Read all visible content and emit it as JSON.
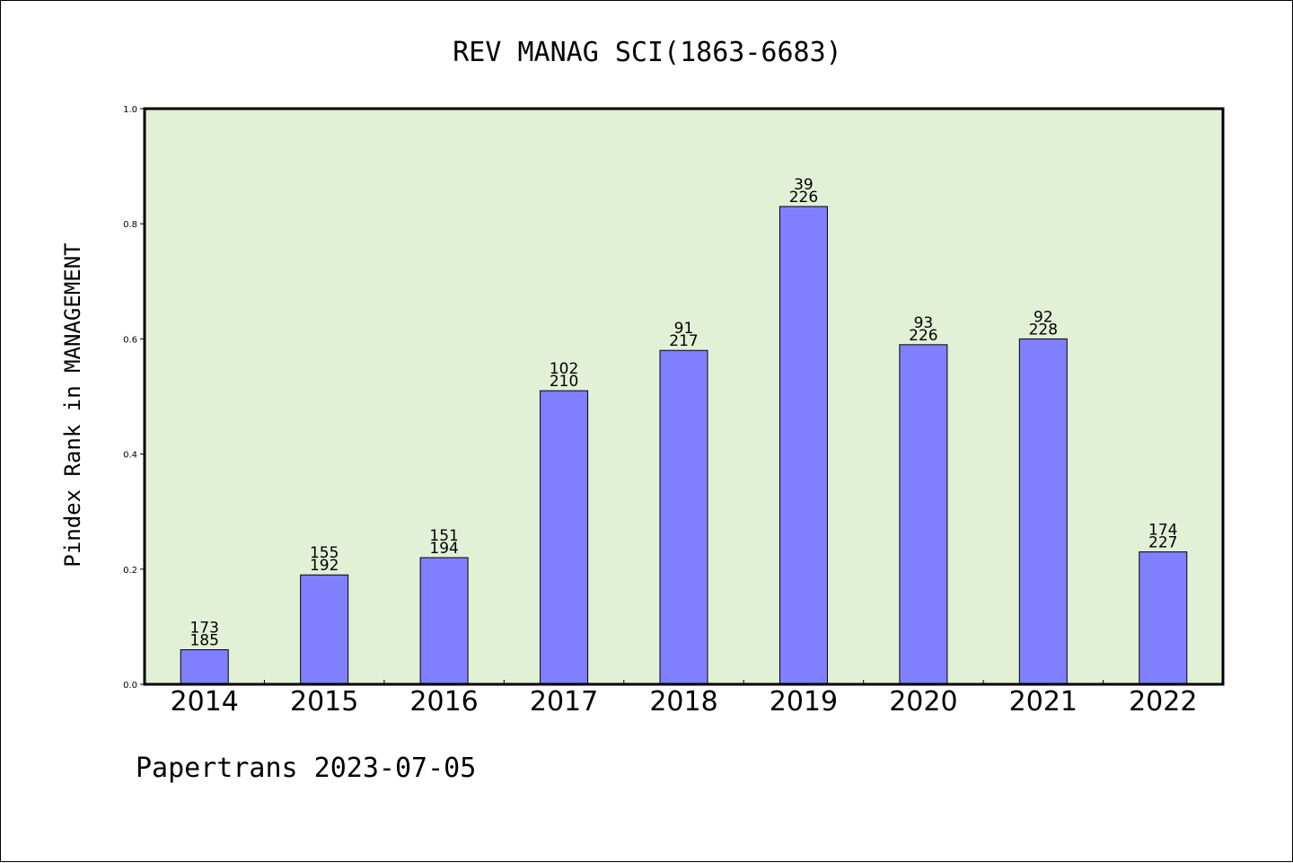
{
  "chart_data": {
    "type": "bar",
    "title": "REV MANAG SCI(1863-6683)",
    "ylabel": "Pindex Rank in MANAGEMENT",
    "xlabel": "",
    "ylim": [
      0,
      1.0
    ],
    "yticks": [
      "0.0",
      "0.2",
      "0.4",
      "0.6",
      "0.8",
      "1.0"
    ],
    "categories": [
      "2014",
      "2015",
      "2016",
      "2017",
      "2018",
      "2019",
      "2020",
      "2021",
      "2022"
    ],
    "values": [
      0.06,
      0.19,
      0.22,
      0.51,
      0.58,
      0.83,
      0.59,
      0.6,
      0.23
    ],
    "labels_top": [
      "173",
      "155",
      "151",
      "102",
      "91",
      "39",
      "93",
      "92",
      "174"
    ],
    "labels_bottom": [
      "185",
      "192",
      "194",
      "210",
      "217",
      "226",
      "226",
      "228",
      "227"
    ],
    "colors": {
      "bar": "#8080ff",
      "plot_bg": "#e2f0d6"
    },
    "grid": false
  },
  "footer": "Papertrans 2023-07-05"
}
